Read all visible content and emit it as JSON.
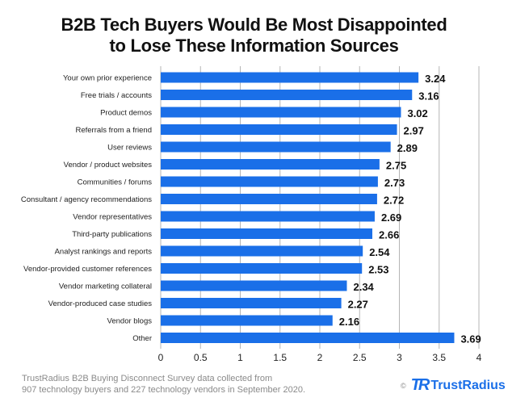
{
  "chart_data": {
    "type": "bar",
    "orientation": "horizontal",
    "title_line1": "B2B Tech Buyers Would Be Most Disappointed",
    "title_line2": "to Lose These Information Sources",
    "categories": [
      "Your own prior experience",
      "Free trials / accounts",
      "Product demos",
      "Referrals from a friend",
      "User reviews",
      "Vendor / product websites",
      "Communities / forums",
      "Consultant / agency recommendations",
      "Vendor representatives",
      "Third-party publications",
      "Analyst rankings and reports",
      "Vendor-provided customer references",
      "Vendor marketing collateral",
      "Vendor-produced case studies",
      "Vendor blogs",
      "Other"
    ],
    "values": [
      3.24,
      3.16,
      3.02,
      2.97,
      2.89,
      2.75,
      2.73,
      2.72,
      2.69,
      2.66,
      2.54,
      2.53,
      2.34,
      2.27,
      2.16,
      3.69
    ],
    "value_labels": [
      "3.24",
      "3.16",
      "3.02",
      "2.97",
      "2.89",
      "2.75",
      "2.73",
      "2.72",
      "2.69",
      "2.66",
      "2.54",
      "2.53",
      "2.34",
      "2.27",
      "2.16",
      "3.69"
    ],
    "xticks": [
      "0",
      "0.5",
      "1",
      "1.5",
      "2",
      "2.5",
      "3",
      "3.5",
      "4"
    ],
    "xlim": [
      0,
      4
    ],
    "grid": true,
    "bar_color": "#1a6fe8"
  },
  "footer": {
    "line1": "TrustRadius B2B Buying Disconnect Survey data collected from",
    "line2": "907 technology buyers and 227 technology vendors in September 2020."
  },
  "logo": {
    "copyright": "©",
    "mark": "TR",
    "name": "TrustRadius"
  }
}
